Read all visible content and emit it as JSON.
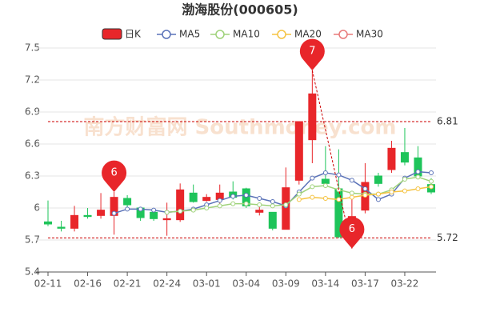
{
  "chart_data": {
    "type": "candlestick",
    "title": "渤海股份(000605)",
    "watermark": "南方财富网 Southmoney.com",
    "categories": [
      "02-11",
      null,
      null,
      "02-16",
      null,
      null,
      "02-21",
      null,
      null,
      "02-24",
      null,
      null,
      "03-01",
      null,
      null,
      "03-04",
      null,
      null,
      "03-09",
      null,
      null,
      "03-14",
      null,
      null,
      "03-17",
      null,
      null,
      "03-22",
      null,
      null
    ],
    "candles": {
      "name": "日K",
      "up_color": "#e8262a",
      "down_color": "#1ec45a",
      "open": [
        5.87,
        5.82,
        5.81,
        5.93,
        5.93,
        5.93,
        6.09,
        6.0,
        5.96,
        5.89,
        5.89,
        6.14,
        6.07,
        6.08,
        6.15,
        6.18,
        5.96,
        5.96,
        5.8,
        6.26,
        6.64,
        6.27,
        6.18,
        5.88,
        5.98,
        6.3,
        6.36,
        6.52,
        6.47,
        6.22
      ],
      "high": [
        6.07,
        5.88,
        6.02,
        6.0,
        6.14,
        6.15,
        6.12,
        6.0,
        5.97,
        6.05,
        6.23,
        6.22,
        6.13,
        6.22,
        6.25,
        6.19,
        6.01,
        5.96,
        6.38,
        6.81,
        7.29,
        6.58,
        6.55,
        6.1,
        6.42,
        6.33,
        6.63,
        6.75,
        6.58,
        6.28
      ],
      "low": [
        5.83,
        5.78,
        5.78,
        5.9,
        5.9,
        5.75,
        6.0,
        5.88,
        5.88,
        5.74,
        5.87,
        6.05,
        6.06,
        6.04,
        6.08,
        6.0,
        5.93,
        5.79,
        5.8,
        6.22,
        6.42,
        6.21,
        5.72,
        5.62,
        5.95,
        6.2,
        6.33,
        6.4,
        6.28,
        6.13
      ],
      "close": [
        5.85,
        5.81,
        5.93,
        5.92,
        5.98,
        6.1,
        6.03,
        5.91,
        5.9,
        5.9,
        6.17,
        6.06,
        6.1,
        6.14,
        6.1,
        6.02,
        5.98,
        5.81,
        6.19,
        6.81,
        7.07,
        6.23,
        5.73,
        5.92,
        6.24,
        6.23,
        6.56,
        6.43,
        6.3,
        6.15
      ]
    },
    "series": [
      {
        "name": "MA5",
        "color": "#5a72b8",
        "values": [
          null,
          null,
          null,
          null,
          null,
          5.95,
          5.99,
          5.99,
          5.98,
          5.96,
          5.97,
          5.99,
          6.03,
          6.07,
          6.11,
          6.12,
          6.09,
          6.06,
          6.02,
          6.15,
          6.28,
          6.33,
          6.31,
          6.26,
          6.18,
          6.08,
          6.13,
          6.28,
          6.34,
          6.33
        ]
      },
      {
        "name": "MA10",
        "color": "#9fd27a",
        "values": [
          null,
          null,
          null,
          null,
          null,
          null,
          null,
          null,
          null,
          5.96,
          5.97,
          5.98,
          6.0,
          6.02,
          6.04,
          6.04,
          6.03,
          6.02,
          6.03,
          6.13,
          6.2,
          6.21,
          6.17,
          6.14,
          6.13,
          6.13,
          6.17,
          6.27,
          6.29,
          6.25
        ]
      },
      {
        "name": "MA20",
        "color": "#f5c342",
        "values": [
          null,
          null,
          null,
          null,
          null,
          null,
          null,
          null,
          null,
          null,
          null,
          null,
          null,
          null,
          null,
          null,
          null,
          null,
          null,
          6.08,
          6.1,
          6.09,
          6.08,
          6.1,
          6.12,
          6.13,
          6.15,
          6.16,
          6.18,
          6.2
        ]
      },
      {
        "name": "MA30",
        "color": "#e87a7a",
        "values": [
          null,
          null,
          null,
          null,
          null,
          null,
          null,
          null,
          null,
          null,
          null,
          null,
          null,
          null,
          null,
          null,
          null,
          null,
          null,
          null,
          null,
          null,
          null,
          null,
          null,
          null,
          null,
          null,
          null,
          null
        ]
      }
    ],
    "annotations": [
      {
        "text": "6",
        "index": 5,
        "value": 6.15
      },
      {
        "text": "7",
        "index": 20,
        "value": 7.29
      },
      {
        "text": "6",
        "index": 23,
        "value": 5.62
      }
    ],
    "ref_lines": [
      6.81,
      5.72
    ],
    "ylim": [
      5.4,
      7.5
    ],
    "yticks": [
      7.5,
      7.2,
      6.9,
      6.6,
      6.3,
      6,
      5.7,
      5.4
    ],
    "grid": true
  }
}
